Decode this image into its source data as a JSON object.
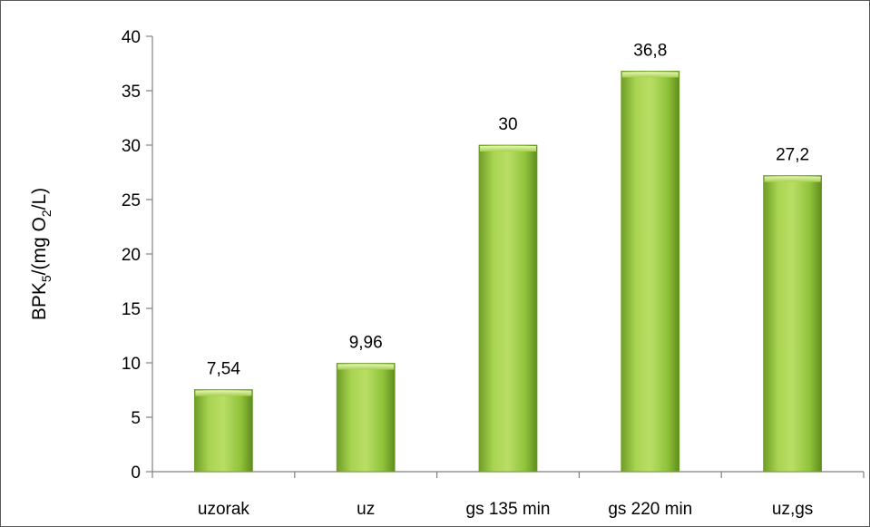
{
  "chart_data": {
    "type": "bar",
    "categories": [
      "uzorak",
      "uz",
      "gs 135 min",
      "gs 220 min",
      "uz,gs"
    ],
    "values": [
      7.54,
      9.96,
      30,
      36.8,
      27.2
    ],
    "data_labels": [
      "7,54",
      "9,96",
      "30",
      "36,8",
      "27,2"
    ],
    "title": "",
    "xlabel": "",
    "ylabel": "BPK5/(mg O2/L)",
    "ylabel_parts": {
      "a": "BPK",
      "sub1": "5",
      "b": "/(mg O",
      "sub2": "2",
      "c": "/L)"
    },
    "ylim": [
      0,
      40
    ],
    "yticks": [
      0,
      5,
      10,
      15,
      20,
      25,
      30,
      35,
      40
    ],
    "grid": false,
    "legend": "none",
    "bar_color": "#93c83e",
    "bar_highlight": "#c4e37a",
    "bar_shadow": "#5e8a1f"
  }
}
